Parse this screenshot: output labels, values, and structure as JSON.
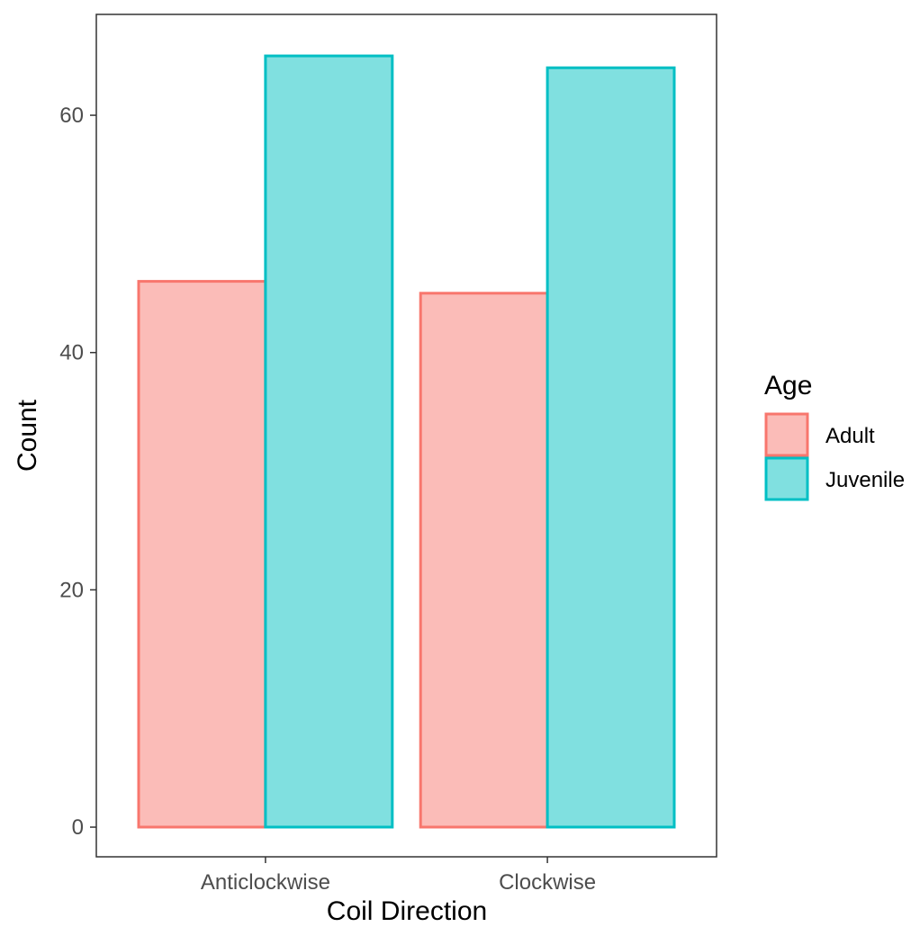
{
  "chart_data": {
    "type": "bar",
    "xlabel": "Coil Direction",
    "ylabel": "Count",
    "categories": [
      "Anticlockwise",
      "Clockwise"
    ],
    "series": [
      {
        "name": "Adult",
        "values": [
          46,
          45
        ],
        "fill": "#fbbcb8",
        "stroke": "#f8766d"
      },
      {
        "name": "Juvenile",
        "values": [
          65,
          64
        ],
        "fill": "#80e0e0",
        "stroke": "#00bfc4"
      }
    ],
    "ylim": [
      -2.5,
      68.5
    ],
    "yticks": [
      0,
      20,
      40,
      60
    ],
    "grid": false,
    "legend": {
      "title": "Age",
      "position": "right"
    }
  }
}
